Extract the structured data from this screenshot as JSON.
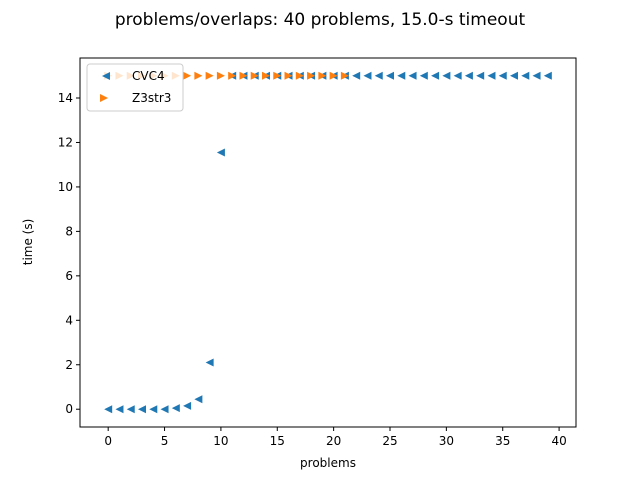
{
  "chart_data": {
    "type": "scatter",
    "title": "problems/overlaps: 40 problems, 15.0-s timeout",
    "xlabel": "problems",
    "ylabel": "time (s)",
    "xlim": [
      -2.5,
      41.5
    ],
    "ylim": [
      -0.8,
      15.8
    ],
    "xticks": [
      0,
      5,
      10,
      15,
      20,
      25,
      30,
      35,
      40
    ],
    "yticks": [
      0,
      2,
      4,
      6,
      8,
      10,
      12,
      14
    ],
    "grid": false,
    "legend_position": "top-left",
    "series": [
      {
        "name": "CVC4",
        "marker": "triangle-left",
        "color": "#1f77b4",
        "x": [
          0,
          1,
          2,
          3,
          4,
          5,
          6,
          7,
          8,
          9,
          10,
          11,
          12,
          13,
          14,
          15,
          16,
          17,
          18,
          19,
          20,
          21,
          22,
          23,
          24,
          25,
          26,
          27,
          28,
          29,
          30,
          31,
          32,
          33,
          34,
          35,
          36,
          37,
          38,
          39
        ],
        "y": [
          0.0,
          0.0,
          0.0,
          0.0,
          0.0,
          0.0,
          0.05,
          0.15,
          0.45,
          2.1,
          11.55,
          15,
          15,
          15,
          15,
          15,
          15,
          15,
          15,
          15,
          15,
          15,
          15,
          15,
          15,
          15,
          15,
          15,
          15,
          15,
          15,
          15,
          15,
          15,
          15,
          15,
          15,
          15,
          15,
          15
        ]
      },
      {
        "name": "Z3str3",
        "marker": "triangle-right",
        "color": "#ff7f0e",
        "x": [
          0,
          1,
          2,
          3,
          4,
          5,
          6,
          7,
          8,
          9,
          10,
          11,
          12,
          13,
          14,
          15,
          16,
          17,
          18,
          19,
          20,
          21
        ],
        "y": [
          15,
          15,
          15,
          15,
          15,
          15,
          15,
          15,
          15,
          15,
          15,
          15,
          15,
          15,
          15,
          15,
          15,
          15,
          15,
          15,
          15,
          15
        ]
      }
    ]
  }
}
